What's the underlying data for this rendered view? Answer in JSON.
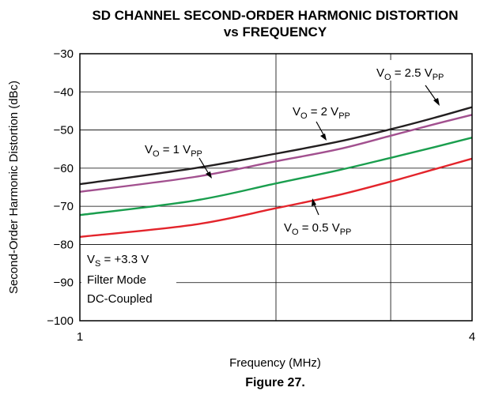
{
  "figure_caption": "Figure 27.",
  "chart_data": {
    "type": "line",
    "title_line1": "SD CHANNEL SECOND-ORDER HARMONIC DISTORTION",
    "title_line2": "vs FREQUENCY",
    "xlabel": "Frequency (MHz)",
    "ylabel": "Second-Order Harmonic Distortion (dBc)",
    "x_scale": "log",
    "xlim": [
      1,
      4
    ],
    "ylim": [
      -100,
      -30
    ],
    "x_ticks": [
      "1",
      "4"
    ],
    "y_ticks": [
      "−30",
      "−40",
      "−50",
      "−60",
      "−70",
      "−80",
      "−90",
      "−100"
    ],
    "grid": true,
    "x": [
      1.0,
      1.5,
      2.0,
      2.5,
      3.0,
      3.5,
      4.0
    ],
    "series": [
      {
        "color": "#e3242b",
        "values": [
          -78,
          -74.8,
          -70.5,
          -67,
          -63.5,
          -60.3,
          -57.5
        ]
      },
      {
        "color": "#1a9e4e",
        "values": [
          -72.3,
          -68.5,
          -64,
          -60.5,
          -57.3,
          -54.5,
          -52
        ]
      },
      {
        "color": "#a2508f",
        "values": [
          -66.2,
          -62.3,
          -58.2,
          -55,
          -51.5,
          -48.5,
          -46
        ]
      },
      {
        "color": "#231f20",
        "values": [
          -64.2,
          -60,
          -56.2,
          -53,
          -49.8,
          -46.8,
          -44
        ]
      }
    ],
    "annotations": {
      "v25": {
        "main": "V",
        "sub1": "O",
        "mid": " = 2.5 V",
        "sub2": "PP"
      },
      "v2": {
        "main": "V",
        "sub1": "O",
        "mid": " = 2 V",
        "sub2": "PP"
      },
      "v1": {
        "main": "V",
        "sub1": "O",
        "mid": " = 1 V",
        "sub2": "PP"
      },
      "v05": {
        "main": "V",
        "sub1": "O",
        "mid": " = 0.5 V",
        "sub2": "PP"
      },
      "cond": {
        "vs_main": "V",
        "vs_sub": "S",
        "vs_rest": " = +3.3 V",
        "line2": "Filter Mode",
        "line3": "DC-Coupled"
      }
    }
  }
}
